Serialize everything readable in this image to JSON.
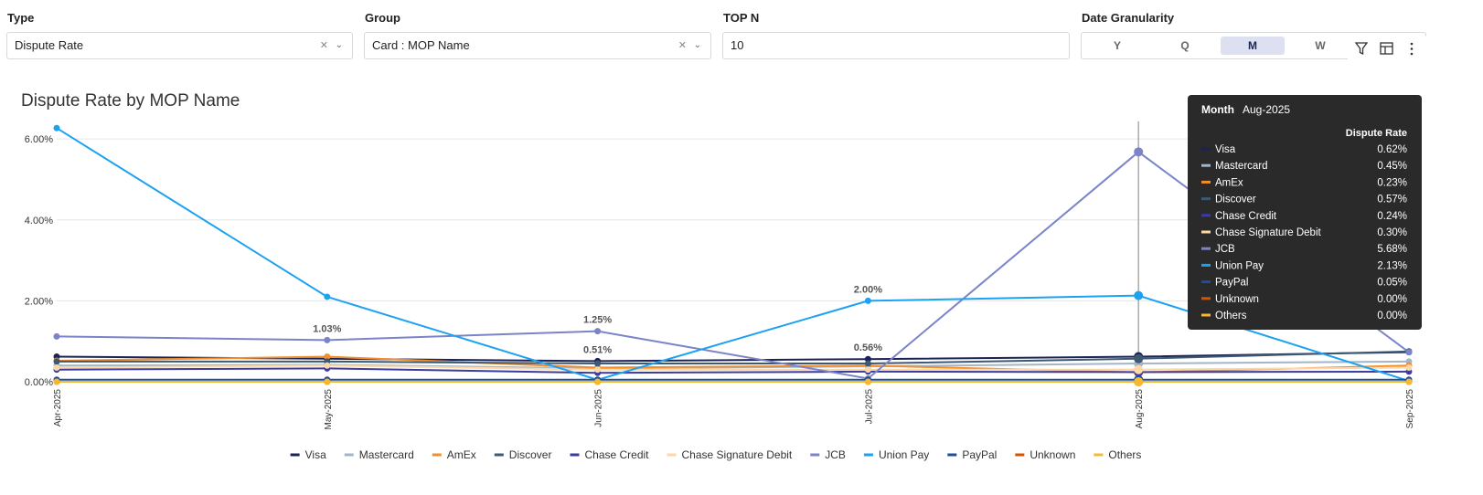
{
  "filters": {
    "type": {
      "label": "Type",
      "value": "Dispute Rate"
    },
    "group": {
      "label": "Group",
      "value": "Card : MOP Name"
    },
    "top_n": {
      "label": "TOP N",
      "value": "10"
    },
    "granularity": {
      "label": "Date Granularity",
      "options": [
        "Y",
        "Q",
        "M",
        "W"
      ],
      "selected": "M"
    }
  },
  "chart_data": {
    "type": "line",
    "title": "Dispute Rate by MOP Name",
    "categories": [
      "Apr-2025",
      "May-2025",
      "Jun-2025",
      "Jul-2025",
      "Aug-2025",
      "Sep-2025"
    ],
    "ylim": [
      0,
      6.5
    ],
    "yticks": [
      {
        "value": 0,
        "label": "0.00%"
      },
      {
        "value": 2,
        "label": "2.00%"
      },
      {
        "value": 4,
        "label": "4.00%"
      },
      {
        "value": 6,
        "label": "6.00%"
      }
    ],
    "grid": true,
    "legend": "bottom",
    "series": [
      {
        "name": "Visa",
        "color": "#1b2256",
        "values": [
          0.62,
          0.57,
          0.51,
          0.56,
          0.62,
          0.73
        ],
        "value_labels": [
          null,
          null,
          "0.51%",
          "0.56%",
          null,
          null
        ]
      },
      {
        "name": "Mastercard",
        "color": "#a3b5c6",
        "values": [
          0.4,
          0.42,
          0.33,
          0.38,
          0.45,
          0.5
        ]
      },
      {
        "name": "AmEx",
        "color": "#f28e2b",
        "values": [
          0.52,
          0.62,
          0.35,
          0.4,
          0.23,
          0.4
        ]
      },
      {
        "name": "Discover",
        "color": "#3d5a73",
        "values": [
          0.5,
          0.5,
          0.45,
          0.45,
          0.57,
          0.75
        ]
      },
      {
        "name": "Chase Credit",
        "color": "#3b3ba0",
        "values": [
          0.3,
          0.33,
          0.22,
          0.25,
          0.24,
          0.25
        ]
      },
      {
        "name": "Chase Signature Debit",
        "color": "#fcd8a6",
        "values": [
          0.35,
          0.4,
          0.3,
          0.3,
          0.3,
          0.35
        ]
      },
      {
        "name": "JCB",
        "color": "#7b84c8",
        "values": [
          1.12,
          1.03,
          1.25,
          0.08,
          5.68,
          0.73
        ],
        "value_labels": [
          null,
          "1.03%",
          "1.25%",
          null,
          null,
          null
        ]
      },
      {
        "name": "Union Pay",
        "color": "#1da1f2",
        "values": [
          6.27,
          2.1,
          0.05,
          2.0,
          2.13,
          0.02
        ],
        "value_labels": [
          null,
          null,
          null,
          "2.00%",
          null,
          null
        ]
      },
      {
        "name": "PayPal",
        "color": "#1f4e9a",
        "values": [
          0.05,
          0.05,
          0.05,
          0.05,
          0.05,
          0.05
        ]
      },
      {
        "name": "Unknown",
        "color": "#d35400",
        "values": [
          0,
          0,
          0,
          0,
          0,
          0
        ]
      },
      {
        "name": "Others",
        "color": "#f5b82e",
        "values": [
          0,
          0,
          0,
          0,
          0,
          0
        ]
      }
    ]
  },
  "tooltip": {
    "category_label": "Month",
    "category": "Aug-2025",
    "index": 4,
    "measure": "Dispute Rate",
    "values": [
      "0.62%",
      "0.45%",
      "0.23%",
      "0.57%",
      "0.24%",
      "0.30%",
      "5.68%",
      "2.13%",
      "0.05%",
      "0.00%",
      "0.00%"
    ]
  }
}
